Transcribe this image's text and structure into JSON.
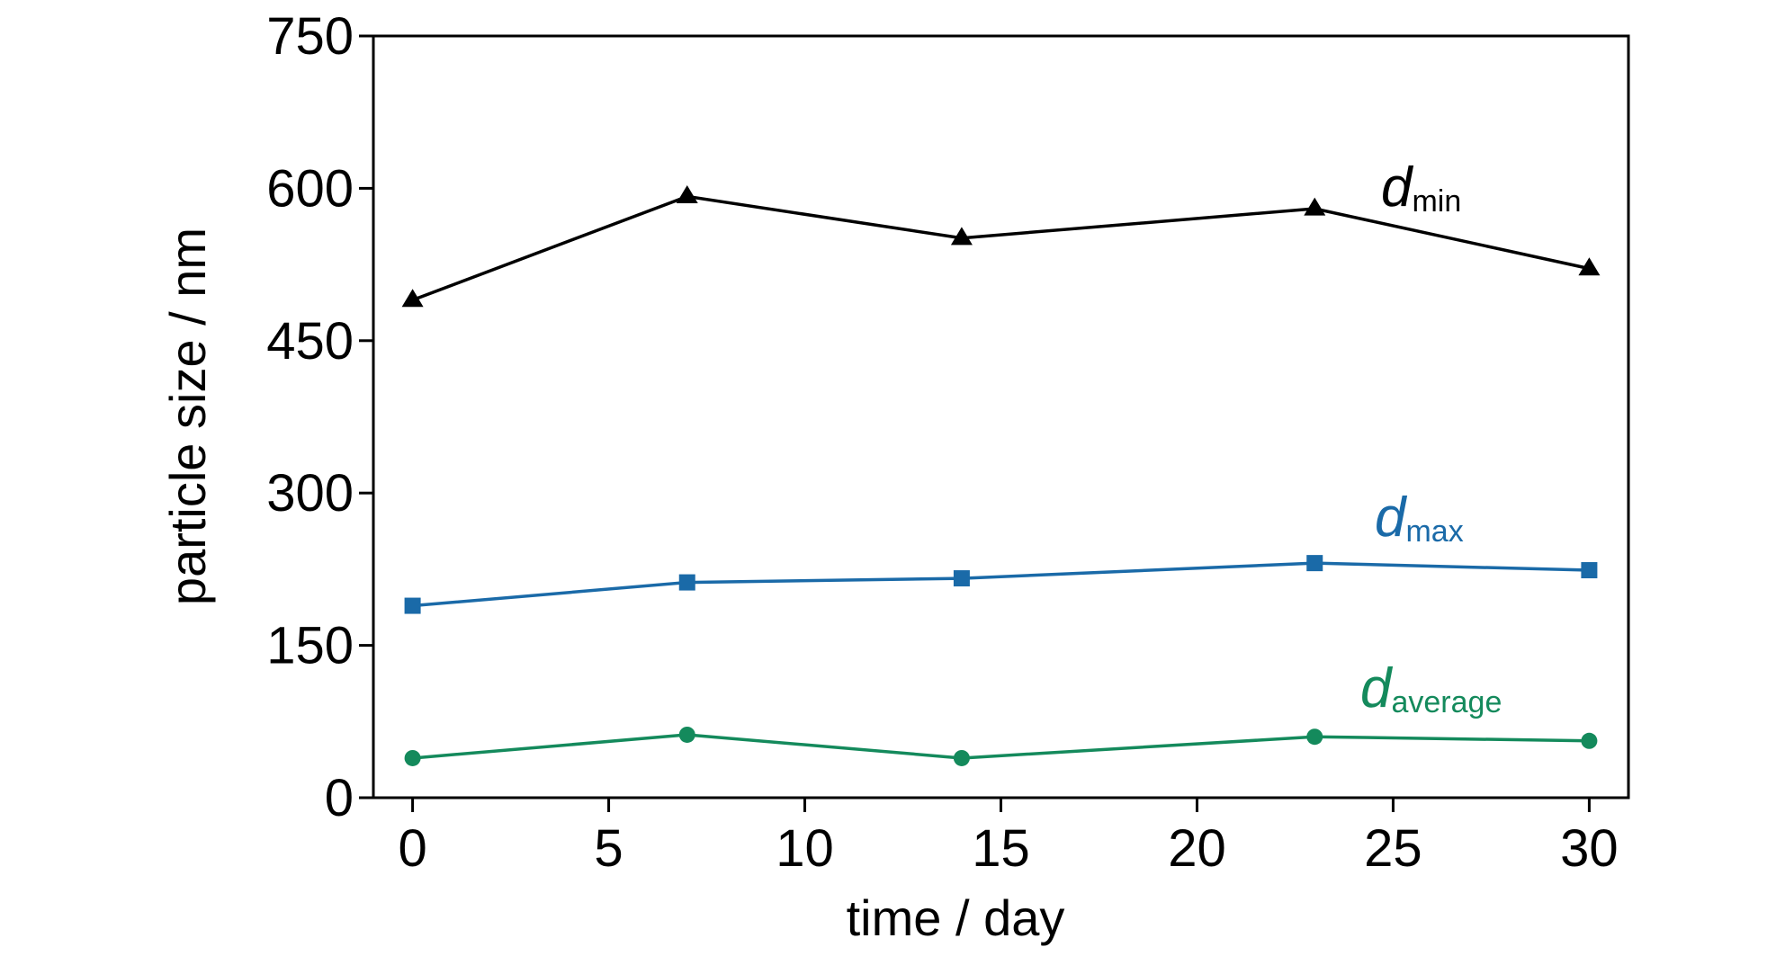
{
  "chart_data": {
    "type": "line",
    "title": "",
    "xlabel": "time / day",
    "ylabel": "particle size / nm",
    "xlim": [
      -1,
      31
    ],
    "ylim": [
      0,
      750
    ],
    "xticks": [
      0,
      5,
      10,
      15,
      20,
      25,
      30
    ],
    "yticks": [
      0,
      150,
      300,
      450,
      600,
      750
    ],
    "xtick_labels": [
      "0",
      "5",
      "10",
      "15",
      "20",
      "25",
      "30"
    ],
    "ytick_labels": [
      "0",
      "150",
      "300",
      "450",
      "600",
      "750"
    ],
    "grid": false,
    "legend": "none",
    "series": [
      {
        "label_main": "d",
        "label_sub": "min",
        "color": "#000000",
        "marker": "triangle",
        "x": [
          0,
          7,
          14,
          23,
          30
        ],
        "y": [
          490,
          592,
          551,
          580,
          521
        ]
      },
      {
        "label_main": "d",
        "label_sub": "max",
        "color": "#1a6aa8",
        "marker": "square",
        "x": [
          0,
          7,
          14,
          23,
          30
        ],
        "y": [
          189,
          212,
          216,
          231,
          224
        ]
      },
      {
        "label_main": "d",
        "label_sub": "average",
        "color": "#148a5c",
        "marker": "circle",
        "x": [
          0,
          7,
          14,
          23,
          30
        ],
        "y": [
          39,
          62,
          39,
          60,
          56
        ]
      }
    ]
  }
}
